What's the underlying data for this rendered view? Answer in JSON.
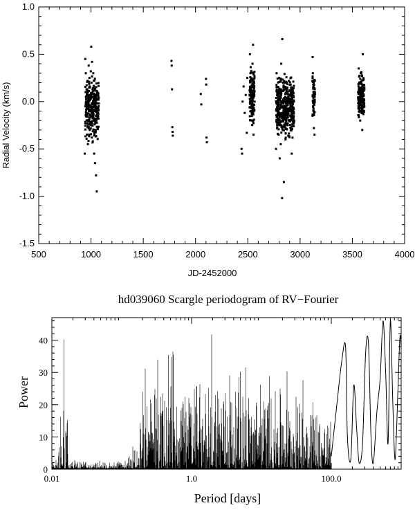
{
  "chart_data": [
    {
      "type": "scatter",
      "title": "",
      "xlabel": "JD-2452000",
      "ylabel": "Radial Velocity (km/s)",
      "xlim": [
        500,
        4000
      ],
      "ylim": [
        -1.5,
        1.0
      ],
      "xticks": [
        "500",
        "1000",
        "1500",
        "2000",
        "2500",
        "3000",
        "3500",
        "4000"
      ],
      "yticks": [
        "-1.5",
        "-1.0",
        "-0.5",
        "0.0",
        "0.5",
        "1.0"
      ],
      "points": [
        [
          940,
          -0.55
        ],
        [
          945,
          0.45
        ],
        [
          950,
          0.3
        ],
        [
          955,
          0.1
        ],
        [
          958,
          -0.2
        ],
        [
          960,
          -0.35
        ],
        [
          965,
          0.0
        ],
        [
          968,
          0.22
        ],
        [
          970,
          -0.45
        ],
        [
          975,
          0.05
        ],
        [
          978,
          0.38
        ],
        [
          980,
          -0.1
        ],
        [
          985,
          0.25
        ],
        [
          988,
          -0.3
        ],
        [
          990,
          0.15
        ],
        [
          995,
          -0.25
        ],
        [
          998,
          0.32
        ],
        [
          1000,
          -0.05
        ],
        [
          1002,
          0.58
        ],
        [
          1005,
          0.2
        ],
        [
          1008,
          -0.38
        ],
        [
          1010,
          0.42
        ],
        [
          1012,
          -0.15
        ],
        [
          1015,
          0.1
        ],
        [
          1018,
          -0.42
        ],
        [
          1020,
          0.0
        ],
        [
          1022,
          0.3
        ],
        [
          1025,
          -0.2
        ],
        [
          1028,
          0.08
        ],
        [
          1030,
          -0.55
        ],
        [
          1032,
          0.22
        ],
        [
          1035,
          -0.1
        ],
        [
          1038,
          -0.65
        ],
        [
          1040,
          0.15
        ],
        [
          1042,
          -0.3
        ],
        [
          1045,
          -0.05
        ],
        [
          1048,
          -0.78
        ],
        [
          1050,
          0.05
        ],
        [
          1052,
          -0.2
        ],
        [
          1055,
          -0.95
        ],
        [
          1058,
          0.1
        ],
        [
          1060,
          -0.12
        ],
        [
          1062,
          0.02
        ],
        [
          1065,
          -0.28
        ],
        [
          1068,
          -0.08
        ],
        [
          1070,
          0.06
        ],
        [
          1072,
          -0.18
        ],
        [
          1075,
          -0.02
        ],
        [
          1770,
          0.43
        ],
        [
          1772,
          0.38
        ],
        [
          1775,
          0.13
        ],
        [
          1778,
          -0.27
        ],
        [
          1780,
          -0.32
        ],
        [
          1782,
          -0.36
        ],
        [
          2050,
          0.08
        ],
        [
          2055,
          -0.03
        ],
        [
          2100,
          0.24
        ],
        [
          2102,
          0.18
        ],
        [
          2105,
          -0.38
        ],
        [
          2108,
          -0.43
        ],
        [
          2440,
          -0.5
        ],
        [
          2445,
          -0.55
        ],
        [
          2450,
          0.0
        ],
        [
          2460,
          0.16
        ],
        [
          2470,
          -0.12
        ],
        [
          2480,
          0.07
        ],
        [
          2490,
          -0.33
        ],
        [
          2495,
          0.25
        ],
        [
          2520,
          0.5
        ],
        [
          2525,
          0.3
        ],
        [
          2530,
          0.1
        ],
        [
          2535,
          -0.05
        ],
        [
          2540,
          -0.2
        ],
        [
          2545,
          0.4
        ],
        [
          2550,
          0.6
        ],
        [
          2555,
          -0.35
        ],
        [
          2560,
          0.2
        ],
        [
          2565,
          0.0
        ],
        [
          2770,
          -0.5
        ],
        [
          2775,
          0.3
        ],
        [
          2780,
          0.1
        ],
        [
          2785,
          -0.2
        ],
        [
          2790,
          0.0
        ],
        [
          2795,
          -0.35
        ],
        [
          2800,
          0.25
        ],
        [
          2805,
          -0.6
        ],
        [
          2810,
          0.05
        ],
        [
          2815,
          -0.45
        ],
        [
          2820,
          0.4
        ],
        [
          2825,
          -0.15
        ],
        [
          2828,
          -1.02
        ],
        [
          2830,
          0.66
        ],
        [
          2835,
          -0.3
        ],
        [
          2840,
          0.15
        ],
        [
          2845,
          -0.85
        ],
        [
          2850,
          -0.05
        ],
        [
          2855,
          0.2
        ],
        [
          2860,
          -0.4
        ],
        [
          2870,
          0.1
        ],
        [
          2880,
          -0.25
        ],
        [
          2890,
          0.05
        ],
        [
          2900,
          -0.1
        ],
        [
          2910,
          0.18
        ],
        [
          2920,
          -0.55
        ],
        [
          2930,
          0.12
        ],
        [
          2940,
          -0.2
        ],
        [
          3120,
          0.47
        ],
        [
          3122,
          0.3
        ],
        [
          3125,
          0.15
        ],
        [
          3128,
          0.0
        ],
        [
          3130,
          -0.1
        ],
        [
          3132,
          -0.28
        ],
        [
          3135,
          0.22
        ],
        [
          3138,
          -0.35
        ],
        [
          3140,
          0.05
        ],
        [
          3142,
          0.1
        ],
        [
          3560,
          0.35
        ],
        [
          3565,
          0.2
        ],
        [
          3570,
          0.0
        ],
        [
          3575,
          -0.2
        ],
        [
          3580,
          0.3
        ],
        [
          3585,
          0.1
        ],
        [
          3590,
          -0.1
        ],
        [
          3595,
          -0.3
        ],
        [
          3600,
          0.5
        ],
        [
          3605,
          0.25
        ],
        [
          3610,
          -0.05
        ],
        [
          3615,
          0.15
        ]
      ]
    },
    {
      "type": "line",
      "title": "hd039060 Scargle periodogram of RV−Fourier",
      "xlabel": "Period [days]",
      "ylabel": "Power",
      "xscale": "log",
      "xlim": [
        0.01,
        1000
      ],
      "ylim": [
        0,
        47
      ],
      "xticks": [
        "0.01",
        "1.0",
        "100.0"
      ],
      "yticks": [
        "0",
        "10",
        "20",
        "30",
        "40"
      ],
      "envelope": [
        [
          0.01,
          3
        ],
        [
          0.012,
          6
        ],
        [
          0.014,
          22
        ],
        [
          0.015,
          43
        ],
        [
          0.016,
          40
        ],
        [
          0.018,
          10
        ],
        [
          0.02,
          4
        ],
        [
          0.03,
          3
        ],
        [
          0.05,
          3
        ],
        [
          0.08,
          3
        ],
        [
          0.12,
          4
        ],
        [
          0.18,
          12
        ],
        [
          0.2,
          33
        ],
        [
          0.25,
          30
        ],
        [
          0.3,
          35
        ],
        [
          0.4,
          32
        ],
        [
          0.5,
          38
        ],
        [
          0.7,
          32
        ],
        [
          1.0,
          34
        ],
        [
          1.5,
          36
        ],
        [
          2.0,
          43
        ],
        [
          3.0,
          35
        ],
        [
          4.0,
          32
        ],
        [
          6.0,
          33
        ],
        [
          10.0,
          29
        ],
        [
          20.0,
          34
        ],
        [
          30.0,
          25
        ],
        [
          50.0,
          34
        ],
        [
          70.0,
          22
        ],
        [
          100.0,
          20
        ]
      ],
      "curve": [
        [
          100,
          4
        ],
        [
          120,
          20
        ],
        [
          140,
          33
        ],
        [
          160,
          38
        ],
        [
          170,
          10
        ],
        [
          190,
          3
        ],
        [
          210,
          26
        ],
        [
          230,
          13
        ],
        [
          250,
          2
        ],
        [
          280,
          8
        ],
        [
          310,
          36
        ],
        [
          340,
          39
        ],
        [
          370,
          10
        ],
        [
          400,
          2
        ],
        [
          450,
          18
        ],
        [
          500,
          28
        ],
        [
          550,
          46
        ],
        [
          600,
          30
        ],
        [
          650,
          8
        ],
        [
          700,
          46
        ],
        [
          760,
          20
        ],
        [
          820,
          3
        ],
        [
          900,
          25
        ],
        [
          960,
          41
        ],
        [
          1000,
          38
        ]
      ]
    }
  ]
}
